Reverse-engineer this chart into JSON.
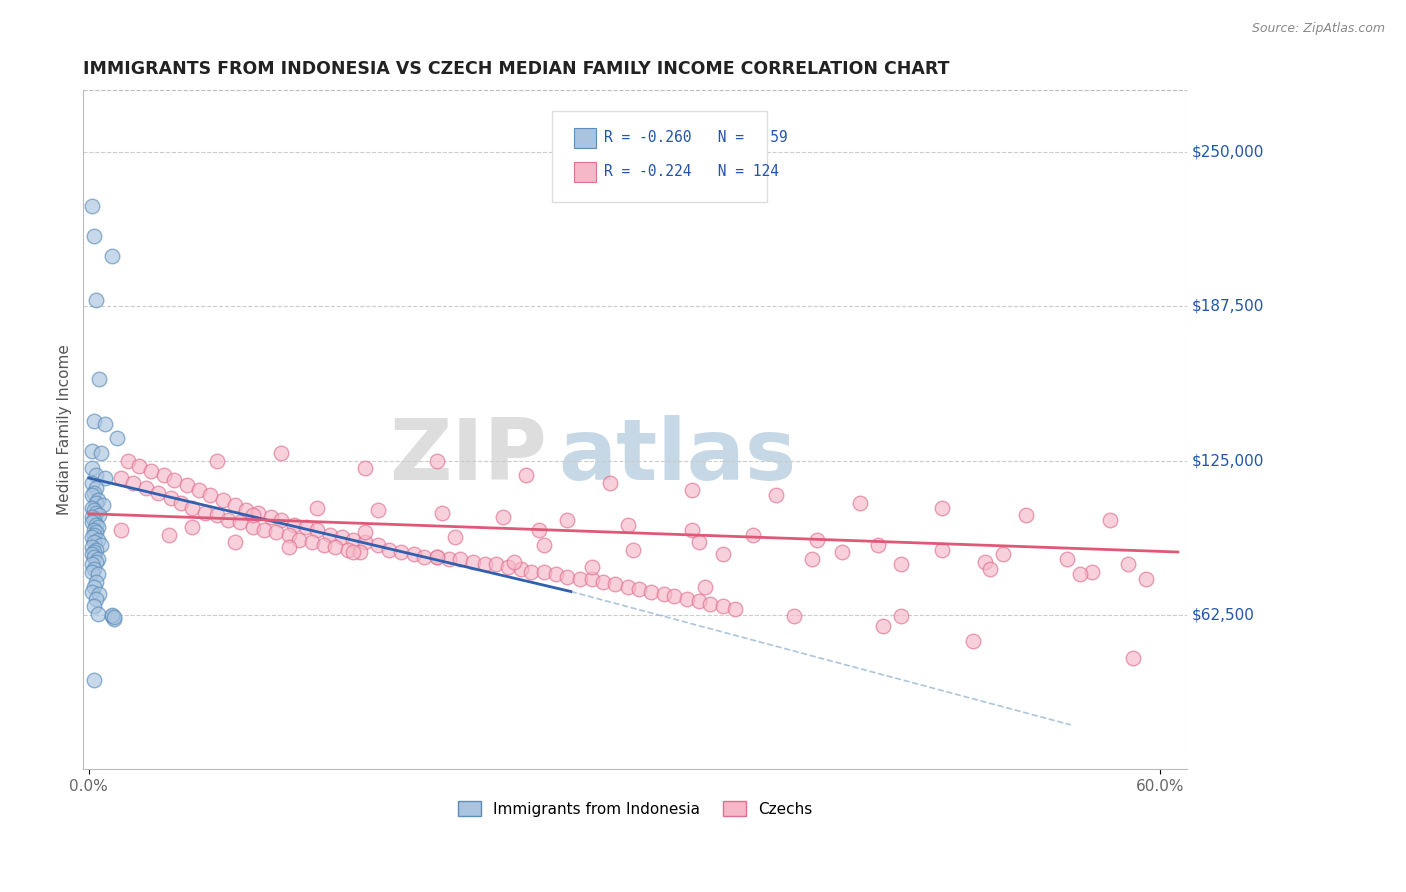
{
  "title": "IMMIGRANTS FROM INDONESIA VS CZECH MEDIAN FAMILY INCOME CORRELATION CHART",
  "source": "Source: ZipAtlas.com",
  "ylabel": "Median Family Income",
  "ytick_labels": [
    "$62,500",
    "$125,000",
    "$187,500",
    "$250,000"
  ],
  "ytick_values": [
    62500,
    125000,
    187500,
    250000
  ],
  "ylim": [
    0,
    275000
  ],
  "xlim": [
    -0.003,
    0.615
  ],
  "blue_color": "#aac4e0",
  "pink_color": "#f5b8c8",
  "blue_edge_color": "#5b8db8",
  "pink_edge_color": "#e07090",
  "blue_line_color": "#3060b0",
  "pink_line_color": "#e05878",
  "watermark_color": "#d8eaf5",
  "watermark_color2": "#c8d8e8",
  "blue_scatter": [
    [
      0.002,
      228000
    ],
    [
      0.003,
      216000
    ],
    [
      0.013,
      208000
    ],
    [
      0.004,
      190000
    ],
    [
      0.006,
      158000
    ],
    [
      0.003,
      141000
    ],
    [
      0.009,
      140000
    ],
    [
      0.016,
      134000
    ],
    [
      0.002,
      129000
    ],
    [
      0.007,
      128000
    ],
    [
      0.002,
      122000
    ],
    [
      0.004,
      119000
    ],
    [
      0.009,
      118000
    ],
    [
      0.002,
      116000
    ],
    [
      0.004,
      114000
    ],
    [
      0.003,
      112000
    ],
    [
      0.002,
      111000
    ],
    [
      0.005,
      109000
    ],
    [
      0.004,
      108000
    ],
    [
      0.008,
      107000
    ],
    [
      0.002,
      106000
    ],
    [
      0.003,
      105000
    ],
    [
      0.004,
      104000
    ],
    [
      0.006,
      103000
    ],
    [
      0.002,
      102000
    ],
    [
      0.003,
      101000
    ],
    [
      0.002,
      100000
    ],
    [
      0.004,
      99000
    ],
    [
      0.005,
      98000
    ],
    [
      0.003,
      97000
    ],
    [
      0.004,
      96000
    ],
    [
      0.003,
      95000
    ],
    [
      0.002,
      94000
    ],
    [
      0.005,
      93000
    ],
    [
      0.003,
      92000
    ],
    [
      0.007,
      91000
    ],
    [
      0.002,
      90000
    ],
    [
      0.004,
      89000
    ],
    [
      0.003,
      88000
    ],
    [
      0.002,
      87000
    ],
    [
      0.003,
      86000
    ],
    [
      0.005,
      85000
    ],
    [
      0.004,
      84000
    ],
    [
      0.002,
      83000
    ],
    [
      0.003,
      81000
    ],
    [
      0.002,
      80000
    ],
    [
      0.005,
      79000
    ],
    [
      0.004,
      76000
    ],
    [
      0.003,
      74000
    ],
    [
      0.002,
      72000
    ],
    [
      0.006,
      71000
    ],
    [
      0.004,
      69000
    ],
    [
      0.003,
      66000
    ],
    [
      0.005,
      63000
    ],
    [
      0.013,
      62000
    ],
    [
      0.014,
      61000
    ],
    [
      0.003,
      36000
    ],
    [
      0.013,
      62500
    ],
    [
      0.014,
      61500
    ]
  ],
  "pink_scatter": [
    [
      0.022,
      125000
    ],
    [
      0.028,
      123000
    ],
    [
      0.035,
      121000
    ],
    [
      0.042,
      119000
    ],
    [
      0.018,
      118000
    ],
    [
      0.048,
      117000
    ],
    [
      0.025,
      116000
    ],
    [
      0.055,
      115000
    ],
    [
      0.032,
      114000
    ],
    [
      0.062,
      113000
    ],
    [
      0.039,
      112000
    ],
    [
      0.068,
      111000
    ],
    [
      0.046,
      110000
    ],
    [
      0.075,
      109000
    ],
    [
      0.052,
      108000
    ],
    [
      0.082,
      107000
    ],
    [
      0.058,
      106000
    ],
    [
      0.088,
      105000
    ],
    [
      0.065,
      104000
    ],
    [
      0.095,
      104000
    ],
    [
      0.072,
      103000
    ],
    [
      0.102,
      102000
    ],
    [
      0.078,
      101000
    ],
    [
      0.108,
      101000
    ],
    [
      0.085,
      100000
    ],
    [
      0.115,
      99000
    ],
    [
      0.092,
      98000
    ],
    [
      0.122,
      98000
    ],
    [
      0.098,
      97000
    ],
    [
      0.128,
      97000
    ],
    [
      0.105,
      96000
    ],
    [
      0.135,
      95000
    ],
    [
      0.112,
      95000
    ],
    [
      0.142,
      94000
    ],
    [
      0.118,
      93000
    ],
    [
      0.148,
      93000
    ],
    [
      0.125,
      92000
    ],
    [
      0.155,
      92000
    ],
    [
      0.132,
      91000
    ],
    [
      0.162,
      91000
    ],
    [
      0.138,
      90000
    ],
    [
      0.168,
      89000
    ],
    [
      0.145,
      89000
    ],
    [
      0.175,
      88000
    ],
    [
      0.152,
      88000
    ],
    [
      0.182,
      87000
    ],
    [
      0.188,
      86000
    ],
    [
      0.195,
      86000
    ],
    [
      0.202,
      85000
    ],
    [
      0.208,
      85000
    ],
    [
      0.215,
      84000
    ],
    [
      0.222,
      83000
    ],
    [
      0.228,
      83000
    ],
    [
      0.235,
      82000
    ],
    [
      0.242,
      81000
    ],
    [
      0.248,
      80000
    ],
    [
      0.255,
      80000
    ],
    [
      0.262,
      79000
    ],
    [
      0.268,
      78000
    ],
    [
      0.275,
      77000
    ],
    [
      0.282,
      77000
    ],
    [
      0.288,
      76000
    ],
    [
      0.295,
      75000
    ],
    [
      0.302,
      74000
    ],
    [
      0.308,
      73000
    ],
    [
      0.315,
      72000
    ],
    [
      0.322,
      71000
    ],
    [
      0.328,
      70000
    ],
    [
      0.335,
      69000
    ],
    [
      0.342,
      68000
    ],
    [
      0.348,
      67000
    ],
    [
      0.355,
      66000
    ],
    [
      0.362,
      65000
    ],
    [
      0.058,
      98000
    ],
    [
      0.092,
      103000
    ],
    [
      0.128,
      106000
    ],
    [
      0.162,
      105000
    ],
    [
      0.198,
      104000
    ],
    [
      0.232,
      102000
    ],
    [
      0.268,
      101000
    ],
    [
      0.302,
      99000
    ],
    [
      0.338,
      97000
    ],
    [
      0.372,
      95000
    ],
    [
      0.408,
      93000
    ],
    [
      0.442,
      91000
    ],
    [
      0.478,
      89000
    ],
    [
      0.512,
      87000
    ],
    [
      0.548,
      85000
    ],
    [
      0.582,
      83000
    ],
    [
      0.072,
      125000
    ],
    [
      0.108,
      128000
    ],
    [
      0.155,
      122000
    ],
    [
      0.195,
      125000
    ],
    [
      0.245,
      119000
    ],
    [
      0.292,
      116000
    ],
    [
      0.338,
      113000
    ],
    [
      0.385,
      111000
    ],
    [
      0.432,
      108000
    ],
    [
      0.478,
      106000
    ],
    [
      0.525,
      103000
    ],
    [
      0.572,
      101000
    ],
    [
      0.252,
      97000
    ],
    [
      0.342,
      92000
    ],
    [
      0.422,
      88000
    ],
    [
      0.502,
      84000
    ],
    [
      0.562,
      80000
    ],
    [
      0.592,
      77000
    ],
    [
      0.155,
      96000
    ],
    [
      0.205,
      94000
    ],
    [
      0.255,
      91000
    ],
    [
      0.305,
      89000
    ],
    [
      0.355,
      87000
    ],
    [
      0.405,
      85000
    ],
    [
      0.455,
      83000
    ],
    [
      0.505,
      81000
    ],
    [
      0.555,
      79000
    ],
    [
      0.345,
      74000
    ],
    [
      0.395,
      62000
    ],
    [
      0.445,
      58000
    ],
    [
      0.495,
      52000
    ],
    [
      0.585,
      45000
    ],
    [
      0.455,
      62000
    ],
    [
      0.018,
      97000
    ],
    [
      0.045,
      95000
    ],
    [
      0.082,
      92000
    ],
    [
      0.112,
      90000
    ],
    [
      0.148,
      88000
    ],
    [
      0.195,
      86000
    ],
    [
      0.238,
      84000
    ],
    [
      0.282,
      82000
    ]
  ],
  "blue_trend": [
    0.0,
    118000,
    0.27,
    72000
  ],
  "pink_trend": [
    0.0,
    103500,
    0.61,
    88000
  ],
  "dashed_ext": [
    0.27,
    72000,
    0.55,
    18000
  ]
}
